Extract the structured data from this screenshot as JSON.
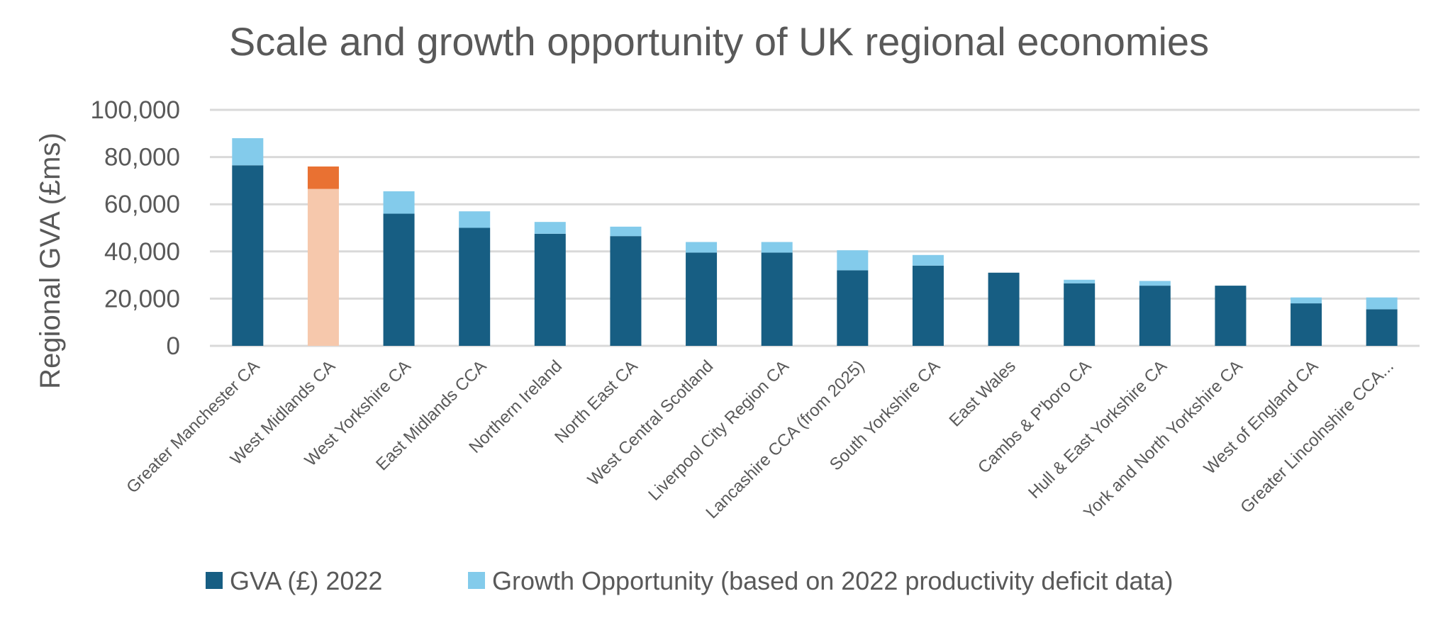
{
  "chart_data": {
    "type": "bar",
    "stacked": true,
    "title": "Scale and growth opportunity of UK regional economies",
    "xlabel": "",
    "ylabel": "Regional GVA (£ms)",
    "ylim": [
      0,
      100000
    ],
    "yticks": [
      "0",
      "20,000",
      "40,000",
      "60,000",
      "80,000",
      "100,000"
    ],
    "ytick_values": [
      0,
      20000,
      40000,
      60000,
      80000,
      100000
    ],
    "grid": true,
    "legend_position": "bottom",
    "categories": [
      "Greater Manchester CA",
      "West Midlands CA",
      "West Yorkshire CA",
      "East Midlands CCA",
      "Northern Ireland",
      "North East CA",
      "West Central Scotland",
      "Liverpool City Region CA",
      "Lancashire CCA (from 2025)",
      "South Yorkshire CA",
      "East Wales",
      "Cambs & P'boro CA",
      "Hull & East Yorkshire CA",
      "York and North Yorkshire CA",
      "West of England CA",
      "Greater Lincolnshire CCA..."
    ],
    "series": [
      {
        "name": "GVA (£) 2022",
        "color": "#175E83",
        "values": [
          76500,
          66500,
          56000,
          50000,
          47500,
          46500,
          39500,
          39500,
          32000,
          34000,
          31000,
          26500,
          25500,
          25500,
          18000,
          15500
        ]
      },
      {
        "name": "Growth Opportunity (based on 2022 productivity deficit data)",
        "color": "#83CBEB",
        "values": [
          11500,
          9500,
          9500,
          7000,
          5000,
          4000,
          4500,
          4500,
          8500,
          4500,
          0,
          1500,
          2000,
          0,
          2500,
          5000
        ]
      }
    ],
    "highlight": {
      "category": "West Midlands CA",
      "base_color": "#F6C8AC",
      "top_color": "#E97132"
    },
    "gridline_color": "#D9D9D9"
  }
}
